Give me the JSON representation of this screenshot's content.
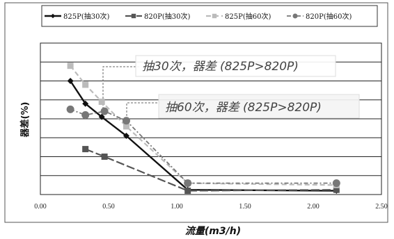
{
  "chart_data": {
    "type": "line",
    "title": "",
    "xlabel": "流量(m3/h)",
    "ylabel": "器差(%)",
    "xlim": [
      0,
      2.5
    ],
    "x_ticks": [
      "0.00",
      "0.50",
      "1.00",
      "1.50",
      "2.00",
      "2.50"
    ],
    "y_gridlines": 8,
    "legend_position": "top",
    "series": [
      {
        "name": "825P(抽30次)",
        "color": "#111111",
        "dash": "",
        "marker": "diamond",
        "width": 2.4,
        "points": [
          [
            0.22,
            6.0
          ],
          [
            0.33,
            4.8
          ],
          [
            0.45,
            4.1
          ],
          [
            0.63,
            3.1
          ],
          [
            1.08,
            0.25
          ],
          [
            2.17,
            0.2
          ]
        ]
      },
      {
        "name": "820P(抽30次)",
        "color": "#555555",
        "dash": "12,4",
        "marker": "square",
        "width": 2.2,
        "points": [
          [
            0.33,
            2.4
          ],
          [
            0.47,
            2.0
          ],
          [
            1.08,
            0.2
          ],
          [
            2.17,
            0.25
          ]
        ]
      },
      {
        "name": "825P(抽60次)",
        "color": "#bbbbbb",
        "dash": "7,4",
        "marker": "square",
        "width": 2.2,
        "points": [
          [
            0.22,
            6.8
          ],
          [
            0.33,
            5.8
          ],
          [
            0.45,
            4.9
          ],
          [
            0.63,
            3.6
          ],
          [
            1.08,
            0.6
          ],
          [
            2.17,
            0.5
          ]
        ]
      },
      {
        "name": "820P(抽60次)",
        "color": "#777777",
        "dash": "6,3,2,3",
        "marker": "circle",
        "width": 1.8,
        "points": [
          [
            0.22,
            4.5
          ],
          [
            0.33,
            4.2
          ],
          [
            0.47,
            4.4
          ],
          [
            0.63,
            3.9
          ],
          [
            1.08,
            0.6
          ],
          [
            2.17,
            0.6
          ]
        ]
      }
    ],
    "annotations": [
      {
        "text": "抽30次，器差 (825P>820P)"
      },
      {
        "text": "抽60次，器差 (825P>820P)"
      }
    ]
  }
}
